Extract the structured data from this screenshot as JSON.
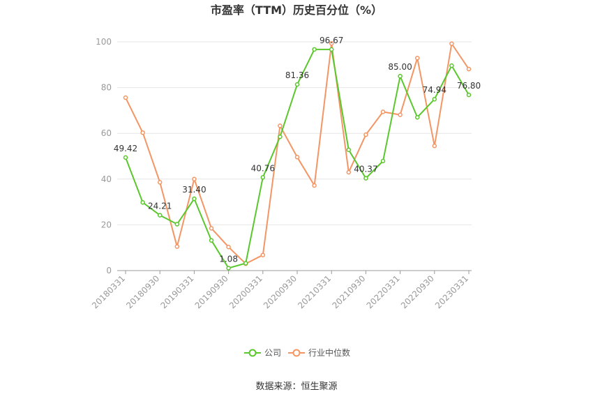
{
  "chart_data": {
    "type": "line",
    "title": "市盈率（TTM）历史百分位（%）",
    "xlabel": "",
    "ylabel": "",
    "ylim": [
      0,
      100
    ],
    "y_ticks": [
      0,
      20,
      40,
      60,
      80,
      100
    ],
    "x": [
      "20180331",
      "20180630",
      "20180930",
      "20181231",
      "20190331",
      "20190630",
      "20190930",
      "20191231",
      "20200331",
      "20200630",
      "20200930",
      "20201231",
      "20210331",
      "20210630",
      "20210930",
      "20211231",
      "20220331",
      "20220630",
      "20220930",
      "20221231",
      "20230331"
    ],
    "x_tick_labels": [
      "20180331",
      "20180930",
      "20190331",
      "20190930",
      "20200331",
      "20200930",
      "20210331",
      "20210930",
      "20220331",
      "20220930",
      "20230331"
    ],
    "grid": true,
    "legend_position": "bottom",
    "series": [
      {
        "name": "公司",
        "color": "#5ac72d",
        "values": [
          49.42,
          29.8,
          24.21,
          20.3,
          31.4,
          13.2,
          1.08,
          3.2,
          40.76,
          58.5,
          81.36,
          96.7,
          96.67,
          52.8,
          40.37,
          47.9,
          85.0,
          67.0,
          74.94,
          89.6,
          76.8
        ],
        "labels": [
          "49.42",
          "",
          "24.21",
          "",
          "31.40",
          "",
          "1.08",
          "",
          "40.76",
          "",
          "81.36",
          "",
          "96.67",
          "",
          "40.37",
          "",
          "85.00",
          "",
          "74.94",
          "",
          "76.80"
        ]
      },
      {
        "name": "行业中位数",
        "color": "#f49564",
        "values": [
          75.6,
          60.3,
          38.6,
          10.5,
          40.0,
          18.5,
          10.3,
          3.0,
          6.8,
          63.3,
          49.6,
          37.2,
          99.3,
          43.0,
          59.4,
          69.4,
          68.1,
          92.9,
          54.5,
          99.2,
          88.1
        ]
      }
    ]
  },
  "footer": {
    "source": "数据来源：恒生聚源"
  }
}
